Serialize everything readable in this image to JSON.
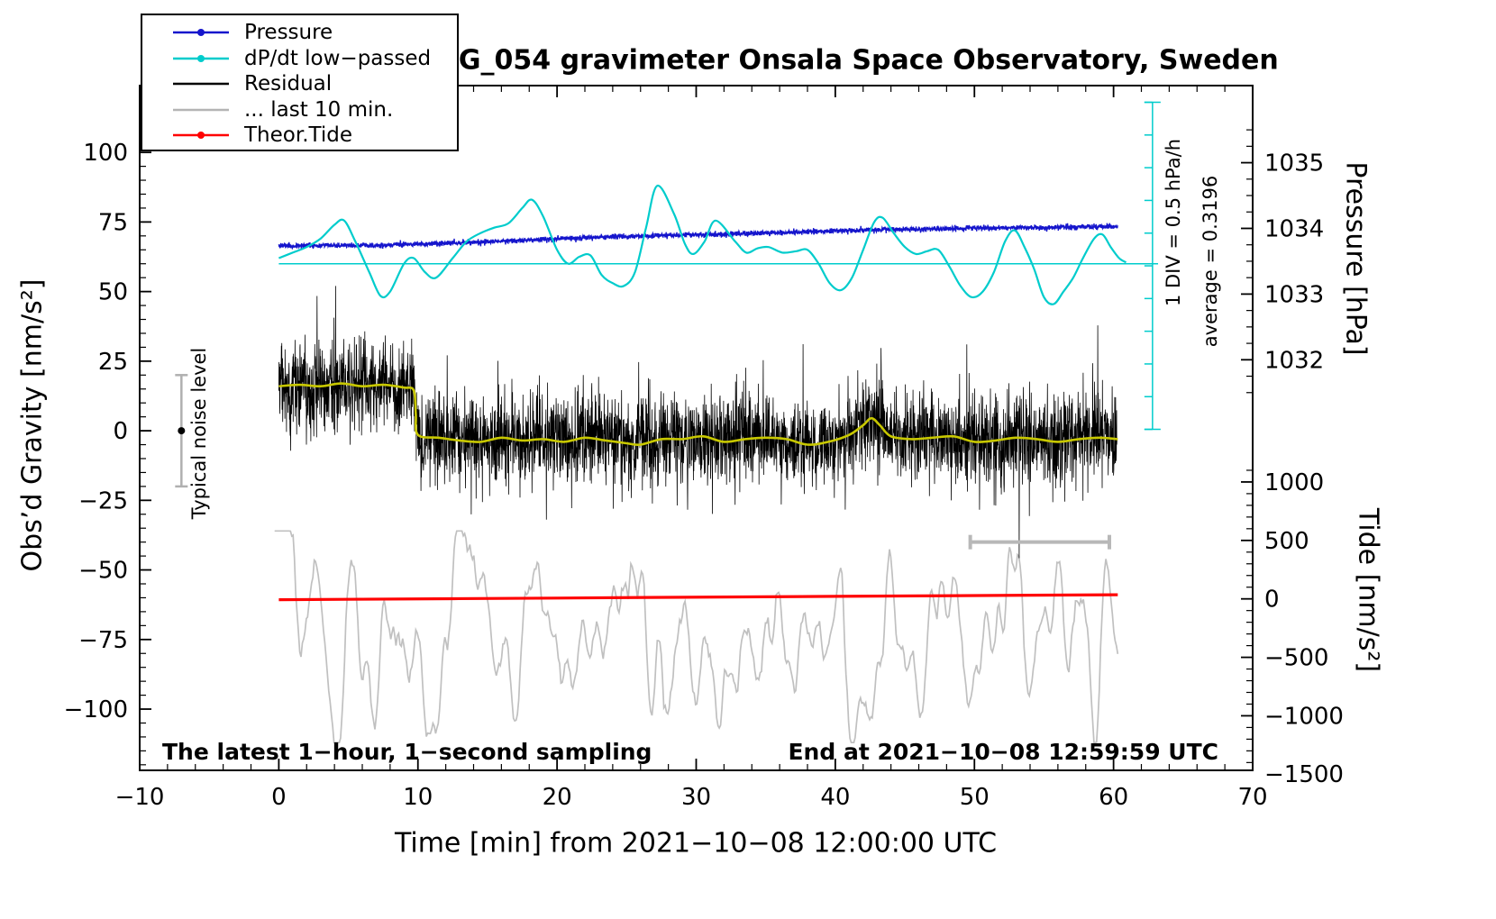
{
  "title": "SCG_054 gravimeter Onsala Space Observatory, Sweden",
  "footer_left": "The latest 1−hour, 1−second sampling",
  "footer_right": "End at 2021−10−08 12:59:59 UTC",
  "annotations": {
    "div_scale": "1 DIV = 0.5 hPa/h",
    "average": "average = 0.3196",
    "noise_level": "Typical noise level"
  },
  "legend": {
    "items": [
      {
        "key": "pressure",
        "label": "Pressure",
        "color": "#1515cc",
        "dot": true
      },
      {
        "key": "dpdt",
        "label": "dP/dt low−passed",
        "color": "#00cccc",
        "dot": true
      },
      {
        "key": "residual",
        "label": "Residual",
        "color": "#000000",
        "dot": false
      },
      {
        "key": "last10",
        "label": "... last 10 min.",
        "color": "#b4b4b4",
        "dot": false
      },
      {
        "key": "tide",
        "label": "Theor.Tide",
        "color": "#ff0000",
        "dot": true
      }
    ]
  },
  "chart_data": {
    "type": "line",
    "title": "SCG_054 gravimeter Onsala Space Observatory, Sweden",
    "x_axis": {
      "label": "Time [min] from 2021−10−08 12:00:00 UTC",
      "range": [
        -10,
        70
      ],
      "major": 10,
      "minor": 2,
      "tick_labels": [
        -10,
        0,
        10,
        20,
        30,
        40,
        50,
        60,
        70
      ]
    },
    "y_left": {
      "label": "Obs’d Gravity [nm/s²]",
      "range": [
        -122,
        124
      ],
      "major": 25,
      "minor": 5,
      "ticks": [
        -100,
        -75,
        -50,
        -25,
        0,
        25,
        50,
        75,
        100
      ]
    },
    "y_right_pressure": {
      "label": "Pressure [hPa]",
      "ticks": [
        1032,
        1033,
        1034,
        1035
      ],
      "gravity_at_1034": 72.7,
      "gravity_per_hPa": 23.6,
      "minor_step": 0.25
    },
    "y_right_tide": {
      "label": "Tide [nm/s²]",
      "ticks": [
        1000,
        500,
        0,
        -500,
        -1000,
        -1500
      ],
      "gravity_at_0": -60.4,
      "gravity_per_unit": 0.042,
      "minor_step": 100
    },
    "grid": false,
    "legend_position": "top-left",
    "series": [
      {
        "name": "pressure",
        "color": "#1515cc",
        "width": 1.4,
        "jitter": 0.45,
        "control": [
          [
            0,
            66.4
          ],
          [
            3,
            66.6
          ],
          [
            6,
            66.5
          ],
          [
            9,
            66.9
          ],
          [
            12,
            67.3
          ],
          [
            15,
            67.9
          ],
          [
            18,
            68.5
          ],
          [
            21,
            69.2
          ],
          [
            24,
            69.7
          ],
          [
            27,
            70.1
          ],
          [
            30,
            70.4
          ],
          [
            33,
            70.8
          ],
          [
            36,
            71.2
          ],
          [
            39,
            71.7
          ],
          [
            42,
            72.1
          ],
          [
            45,
            72.4
          ],
          [
            48,
            72.6
          ],
          [
            51,
            72.8
          ],
          [
            54,
            73.0
          ],
          [
            57,
            73.2
          ],
          [
            60.3,
            73.4
          ]
        ]
      },
      {
        "name": "dpdt_lowpassed",
        "color": "#00cccc",
        "width": 2.2,
        "control": [
          [
            0,
            62
          ],
          [
            1,
            64
          ],
          [
            2,
            66
          ],
          [
            3,
            69
          ],
          [
            4,
            74
          ],
          [
            4.7,
            75.5
          ],
          [
            5.5,
            68
          ],
          [
            6.5,
            57
          ],
          [
            7.3,
            48.5
          ],
          [
            8,
            50
          ],
          [
            9,
            60
          ],
          [
            9.7,
            62
          ],
          [
            10.5,
            57
          ],
          [
            11.3,
            55
          ],
          [
            12.5,
            62
          ],
          [
            13.5,
            68
          ],
          [
            14.5,
            71
          ],
          [
            15.5,
            73
          ],
          [
            16.5,
            74.5
          ],
          [
            17.5,
            80
          ],
          [
            18.2,
            83
          ],
          [
            19,
            77
          ],
          [
            20,
            65
          ],
          [
            20.8,
            60
          ],
          [
            21.6,
            62.5
          ],
          [
            22.4,
            63
          ],
          [
            23.2,
            56
          ],
          [
            24,
            53
          ],
          [
            24.8,
            52
          ],
          [
            25.6,
            57
          ],
          [
            26.4,
            73
          ],
          [
            27.2,
            88
          ],
          [
            28.4,
            78
          ],
          [
            29.2,
            67
          ],
          [
            29.8,
            63.5
          ],
          [
            30.6,
            68
          ],
          [
            31.4,
            75.5
          ],
          [
            32.8,
            68
          ],
          [
            33.6,
            64
          ],
          [
            34.4,
            65.5
          ],
          [
            35.2,
            66
          ],
          [
            36.2,
            64
          ],
          [
            37.2,
            64.5
          ],
          [
            38,
            65
          ],
          [
            38.8,
            60
          ],
          [
            39.6,
            53
          ],
          [
            40.4,
            50.5
          ],
          [
            41.2,
            55
          ],
          [
            42,
            65
          ],
          [
            42.8,
            75
          ],
          [
            43.4,
            76.5
          ],
          [
            44.2,
            71
          ],
          [
            45,
            66
          ],
          [
            45.8,
            63.5
          ],
          [
            46.6,
            64.5
          ],
          [
            47.4,
            65
          ],
          [
            48.2,
            59
          ],
          [
            49,
            52
          ],
          [
            49.8,
            48
          ],
          [
            50.6,
            50
          ],
          [
            51.4,
            57
          ],
          [
            52.2,
            68
          ],
          [
            52.9,
            72
          ],
          [
            53.6,
            66
          ],
          [
            54.3,
            58
          ],
          [
            55,
            48
          ],
          [
            55.7,
            45.5
          ],
          [
            56.4,
            50
          ],
          [
            57.1,
            55
          ],
          [
            57.8,
            62
          ],
          [
            58.6,
            69
          ],
          [
            59.2,
            70.5
          ],
          [
            59.8,
            66
          ],
          [
            60.4,
            62
          ],
          [
            60.9,
            60.5
          ]
        ]
      },
      {
        "name": "residual",
        "color": "#000000",
        "width": 0.8,
        "noise_sigma": 8,
        "spike_prob": 0.015,
        "spike_scale": 26
      },
      {
        "name": "residual_lowpass",
        "color": "#c8c800",
        "width": 2.6,
        "control": [
          [
            0,
            16
          ],
          [
            1.5,
            16.5
          ],
          [
            3,
            16
          ],
          [
            4.5,
            17
          ],
          [
            6,
            16
          ],
          [
            7.5,
            16.5
          ],
          [
            9,
            15.5
          ],
          [
            9.7,
            14.5
          ],
          [
            9.85,
            6
          ],
          [
            10,
            -1.5
          ],
          [
            11.5,
            -2.5
          ],
          [
            13,
            -3.5
          ],
          [
            14.5,
            -4
          ],
          [
            16,
            -2.5
          ],
          [
            17.5,
            -3.5
          ],
          [
            19,
            -3
          ],
          [
            20.5,
            -4
          ],
          [
            22,
            -2.5
          ],
          [
            23.5,
            -3.5
          ],
          [
            25,
            -4.5
          ],
          [
            26,
            -5
          ],
          [
            27.5,
            -3
          ],
          [
            29,
            -3
          ],
          [
            30.5,
            -2
          ],
          [
            32,
            -4
          ],
          [
            33.5,
            -3
          ],
          [
            35,
            -2.5
          ],
          [
            36.5,
            -3
          ],
          [
            38,
            -5
          ],
          [
            39.5,
            -4
          ],
          [
            41,
            -1.5
          ],
          [
            42,
            2
          ],
          [
            42.6,
            4.5
          ],
          [
            43.2,
            2
          ],
          [
            44,
            -2
          ],
          [
            45.5,
            -3
          ],
          [
            47,
            -2.5
          ],
          [
            48.5,
            -2
          ],
          [
            50,
            -4
          ],
          [
            51.5,
            -3.5
          ],
          [
            53,
            -2.5
          ],
          [
            54.5,
            -3
          ],
          [
            56,
            -4
          ],
          [
            57.5,
            -3
          ],
          [
            59,
            -2.5
          ],
          [
            60.3,
            -3
          ]
        ]
      },
      {
        "name": "residual_last10",
        "color": "#c0c0c0",
        "width": 1.7,
        "center": -74,
        "sigma": 19,
        "ar": 0.88
      },
      {
        "name": "theor_tide",
        "color": "#ff0000",
        "width": 3.2,
        "control": [
          [
            0,
            -60.7
          ],
          [
            20,
            -60.1
          ],
          [
            40,
            -59.5
          ],
          [
            60.3,
            -58.9
          ]
        ]
      }
    ],
    "reference_line": {
      "value": 60,
      "x_start": 0,
      "x_end": 63.2,
      "color": "#00cccc"
    },
    "div_ruler": {
      "x": 62.8,
      "g_min": 0.5,
      "g_max": 118,
      "step": 11.75,
      "color": "#00cccc"
    },
    "noise_bar": {
      "x": -7,
      "center": 0,
      "half": 20,
      "color": "#b0b0b0"
    },
    "last10_bar": {
      "g": -40,
      "x_start": 49.7,
      "x_end": 59.7,
      "color": "#b8b8b8"
    }
  }
}
